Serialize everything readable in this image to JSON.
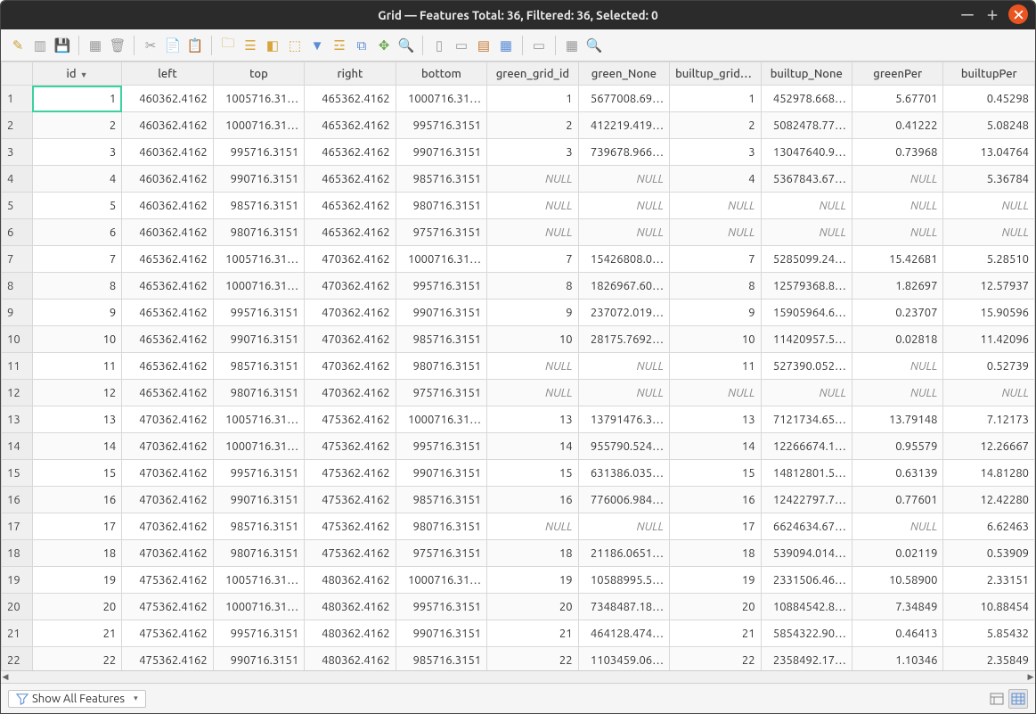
{
  "window": {
    "title": "Grid — Features Total: 36, Filtered: 36, Selected: 0"
  },
  "table": {
    "columns": [
      "id",
      "left",
      "top",
      "right",
      "bottom",
      "green_grid_id",
      "green_None",
      "builtup_grid_id",
      "builtup_None",
      "greenPer",
      "builtupPer"
    ],
    "sort_column": "id",
    "rows": [
      {
        "n": 1,
        "id": "1",
        "left": "460362.4162",
        "top": "1005716.31…",
        "right": "465362.4162",
        "bottom": "1000716.31…",
        "ggid": "1",
        "gn": "5677008.69…",
        "bgid": "1",
        "bn": "452978.668…",
        "gp": "5.67701",
        "bp": "0.45298",
        "sel": true
      },
      {
        "n": 2,
        "id": "2",
        "left": "460362.4162",
        "top": "1000716.31…",
        "right": "465362.4162",
        "bottom": "995716.3151",
        "ggid": "2",
        "gn": "412219.419…",
        "bgid": "2",
        "bn": "5082478.77…",
        "gp": "0.41222",
        "bp": "5.08248"
      },
      {
        "n": 3,
        "id": "3",
        "left": "460362.4162",
        "top": "995716.3151",
        "right": "465362.4162",
        "bottom": "990716.3151",
        "ggid": "3",
        "gn": "739678.966…",
        "bgid": "3",
        "bn": "13047640.9…",
        "gp": "0.73968",
        "bp": "13.04764"
      },
      {
        "n": 4,
        "id": "4",
        "left": "460362.4162",
        "top": "990716.3151",
        "right": "465362.4162",
        "bottom": "985716.3151",
        "ggid": null,
        "gn": null,
        "bgid": "4",
        "bn": "5367843.67…",
        "gp": null,
        "bp": "5.36784"
      },
      {
        "n": 5,
        "id": "5",
        "left": "460362.4162",
        "top": "985716.3151",
        "right": "465362.4162",
        "bottom": "980716.3151",
        "ggid": null,
        "gn": null,
        "bgid": null,
        "bn": null,
        "gp": null,
        "bp": null
      },
      {
        "n": 6,
        "id": "6",
        "left": "460362.4162",
        "top": "980716.3151",
        "right": "465362.4162",
        "bottom": "975716.3151",
        "ggid": null,
        "gn": null,
        "bgid": null,
        "bn": null,
        "gp": null,
        "bp": null
      },
      {
        "n": 7,
        "id": "7",
        "left": "465362.4162",
        "top": "1005716.31…",
        "right": "470362.4162",
        "bottom": "1000716.31…",
        "ggid": "7",
        "gn": "15426808.0…",
        "bgid": "7",
        "bn": "5285099.24…",
        "gp": "15.42681",
        "bp": "5.28510"
      },
      {
        "n": 8,
        "id": "8",
        "left": "465362.4162",
        "top": "1000716.31…",
        "right": "470362.4162",
        "bottom": "995716.3151",
        "ggid": "8",
        "gn": "1826967.60…",
        "bgid": "8",
        "bn": "12579368.8…",
        "gp": "1.82697",
        "bp": "12.57937"
      },
      {
        "n": 9,
        "id": "9",
        "left": "465362.4162",
        "top": "995716.3151",
        "right": "470362.4162",
        "bottom": "990716.3151",
        "ggid": "9",
        "gn": "237072.019…",
        "bgid": "9",
        "bn": "15905964.6…",
        "gp": "0.23707",
        "bp": "15.90596"
      },
      {
        "n": 10,
        "id": "10",
        "left": "465362.4162",
        "top": "990716.3151",
        "right": "470362.4162",
        "bottom": "985716.3151",
        "ggid": "10",
        "gn": "28175.7692…",
        "bgid": "10",
        "bn": "11420957.5…",
        "gp": "0.02818",
        "bp": "11.42096"
      },
      {
        "n": 11,
        "id": "11",
        "left": "465362.4162",
        "top": "985716.3151",
        "right": "470362.4162",
        "bottom": "980716.3151",
        "ggid": null,
        "gn": null,
        "bgid": "11",
        "bn": "527390.052…",
        "gp": null,
        "bp": "0.52739"
      },
      {
        "n": 12,
        "id": "12",
        "left": "465362.4162",
        "top": "980716.3151",
        "right": "470362.4162",
        "bottom": "975716.3151",
        "ggid": null,
        "gn": null,
        "bgid": null,
        "bn": null,
        "gp": null,
        "bp": null
      },
      {
        "n": 13,
        "id": "13",
        "left": "470362.4162",
        "top": "1005716.31…",
        "right": "475362.4162",
        "bottom": "1000716.31…",
        "ggid": "13",
        "gn": "13791476.3…",
        "bgid": "13",
        "bn": "7121734.65…",
        "gp": "13.79148",
        "bp": "7.12173"
      },
      {
        "n": 14,
        "id": "14",
        "left": "470362.4162",
        "top": "1000716.31…",
        "right": "475362.4162",
        "bottom": "995716.3151",
        "ggid": "14",
        "gn": "955790.524…",
        "bgid": "14",
        "bn": "12266674.1…",
        "gp": "0.95579",
        "bp": "12.26667"
      },
      {
        "n": 15,
        "id": "15",
        "left": "470362.4162",
        "top": "995716.3151",
        "right": "475362.4162",
        "bottom": "990716.3151",
        "ggid": "15",
        "gn": "631386.035…",
        "bgid": "15",
        "bn": "14812801.5…",
        "gp": "0.63139",
        "bp": "14.81280"
      },
      {
        "n": 16,
        "id": "16",
        "left": "470362.4162",
        "top": "990716.3151",
        "right": "475362.4162",
        "bottom": "985716.3151",
        "ggid": "16",
        "gn": "776006.984…",
        "bgid": "16",
        "bn": "12422797.7…",
        "gp": "0.77601",
        "bp": "12.42280"
      },
      {
        "n": 17,
        "id": "17",
        "left": "470362.4162",
        "top": "985716.3151",
        "right": "475362.4162",
        "bottom": "980716.3151",
        "ggid": null,
        "gn": null,
        "bgid": "17",
        "bn": "6624634.67…",
        "gp": null,
        "bp": "6.62463"
      },
      {
        "n": 18,
        "id": "18",
        "left": "470362.4162",
        "top": "980716.3151",
        "right": "475362.4162",
        "bottom": "975716.3151",
        "ggid": "18",
        "gn": "21186.0651…",
        "bgid": "18",
        "bn": "539094.014…",
        "gp": "0.02119",
        "bp": "0.53909"
      },
      {
        "n": 19,
        "id": "19",
        "left": "475362.4162",
        "top": "1005716.31…",
        "right": "480362.4162",
        "bottom": "1000716.31…",
        "ggid": "19",
        "gn": "10588995.5…",
        "bgid": "19",
        "bn": "2331506.46…",
        "gp": "10.58900",
        "bp": "2.33151"
      },
      {
        "n": 20,
        "id": "20",
        "left": "475362.4162",
        "top": "1000716.31…",
        "right": "480362.4162",
        "bottom": "995716.3151",
        "ggid": "20",
        "gn": "7348487.18…",
        "bgid": "20",
        "bn": "10884542.8…",
        "gp": "7.34849",
        "bp": "10.88454"
      },
      {
        "n": 21,
        "id": "21",
        "left": "475362.4162",
        "top": "995716.3151",
        "right": "480362.4162",
        "bottom": "990716.3151",
        "ggid": "21",
        "gn": "464128.474…",
        "bgid": "21",
        "bn": "5854322.90…",
        "gp": "0.46413",
        "bp": "5.85432"
      },
      {
        "n": 22,
        "id": "22",
        "left": "475362.4162",
        "top": "990716.3151",
        "right": "480362.4162",
        "bottom": "985716.3151",
        "ggid": "22",
        "gn": "1103459.06…",
        "bgid": "22",
        "bn": "2358492.17…",
        "gp": "1.10346",
        "bp": "2.35849"
      }
    ]
  },
  "statusbar": {
    "filter_label": "Show All Features"
  },
  "null_label": "NULL",
  "toolbar_icons": [
    {
      "name": "edit-pencil-icon",
      "color": "#caa23a",
      "glyph": "✎"
    },
    {
      "name": "multi-edit-icon",
      "color": "#9a9a9a",
      "glyph": "▥"
    },
    {
      "name": "save-icon",
      "color": "#9a9a9a",
      "glyph": "💾"
    },
    {
      "sep": true
    },
    {
      "name": "add-feature-icon",
      "color": "#9a9a9a",
      "glyph": "▦"
    },
    {
      "name": "delete-icon",
      "color": "#9a9a9a",
      "glyph": "🗑"
    },
    {
      "sep": true
    },
    {
      "name": "cut-icon",
      "color": "#9a9a9a",
      "glyph": "✂"
    },
    {
      "name": "copy-icon",
      "color": "#9a9a9a",
      "glyph": "📄"
    },
    {
      "name": "paste-icon",
      "color": "#9a9a9a",
      "glyph": "📋"
    },
    {
      "sep": true
    },
    {
      "name": "new-field-icon",
      "color": "#caa23a",
      "glyph": "🗀"
    },
    {
      "name": "select-all-icon",
      "color": "#d8a53a",
      "glyph": "☰"
    },
    {
      "name": "invert-select-icon",
      "color": "#d8a53a",
      "glyph": "◧"
    },
    {
      "name": "deselect-icon",
      "color": "#d8a53a",
      "glyph": "⬚"
    },
    {
      "name": "filter-icon",
      "color": "#5b8dd6",
      "glyph": "▼"
    },
    {
      "name": "select-expr-icon",
      "color": "#d8a53a",
      "glyph": "☲"
    },
    {
      "name": "move-top-icon",
      "color": "#5b8dd6",
      "glyph": "⧉"
    },
    {
      "name": "pan-to-icon",
      "color": "#6aa84f",
      "glyph": "✥"
    },
    {
      "name": "zoom-to-icon",
      "color": "#666",
      "glyph": "🔍"
    },
    {
      "sep": true
    },
    {
      "name": "new-column-icon",
      "color": "#9a9a9a",
      "glyph": "▯"
    },
    {
      "name": "delete-column-icon",
      "color": "#9a9a9a",
      "glyph": "▭"
    },
    {
      "name": "field-calc-icon",
      "color": "#c77d3a",
      "glyph": "▤"
    },
    {
      "name": "conditional-icon",
      "color": "#5b8dd6",
      "glyph": "▦"
    },
    {
      "sep": true
    },
    {
      "name": "layout-icon",
      "color": "#9a9a9a",
      "glyph": "▭"
    },
    {
      "sep": true
    },
    {
      "name": "actions-icon",
      "color": "#9a9a9a",
      "glyph": "▦"
    },
    {
      "name": "reload-icon",
      "color": "#5b8dd6",
      "glyph": "🔍"
    }
  ]
}
